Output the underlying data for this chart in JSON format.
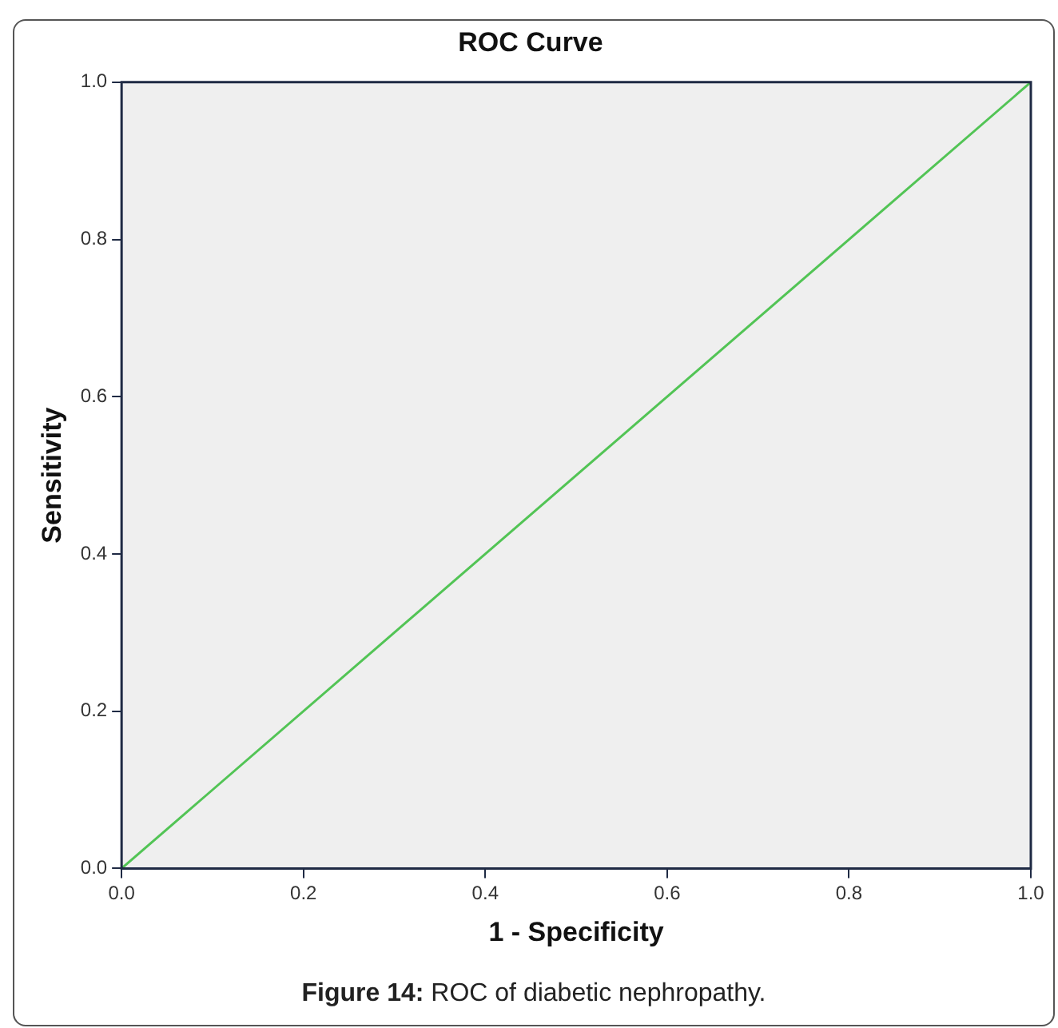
{
  "chart_data": {
    "type": "line",
    "title": "ROC Curve",
    "xlabel": "1 - Specificity",
    "ylabel": "Sensitivity",
    "x": [
      0,
      1
    ],
    "series": [
      {
        "color": "#52c455",
        "values": [
          0,
          1
        ]
      }
    ],
    "xlim": [
      0,
      1
    ],
    "ylim": [
      0,
      1
    ],
    "xticks": [
      {
        "value": 0,
        "label": "0.0"
      },
      {
        "value": 0.2,
        "label": "0.2"
      },
      {
        "value": 0.4,
        "label": "0.4"
      },
      {
        "value": 0.6,
        "label": "0.6"
      },
      {
        "value": 0.8,
        "label": "0.8"
      },
      {
        "value": 1,
        "label": "1.0"
      }
    ],
    "yticks": [
      {
        "value": 0,
        "label": "0.0"
      },
      {
        "value": 0.2,
        "label": "0.2"
      },
      {
        "value": 0.4,
        "label": "0.4"
      },
      {
        "value": 0.6,
        "label": "0.6"
      },
      {
        "value": 0.8,
        "label": "0.8"
      },
      {
        "value": 1,
        "label": "1.0"
      }
    ],
    "grid": false,
    "legend": false,
    "marker": "none",
    "line_style": "solid",
    "annotations": [
      "Figure 14: ROC of diabetic nephropathy."
    ]
  }
}
